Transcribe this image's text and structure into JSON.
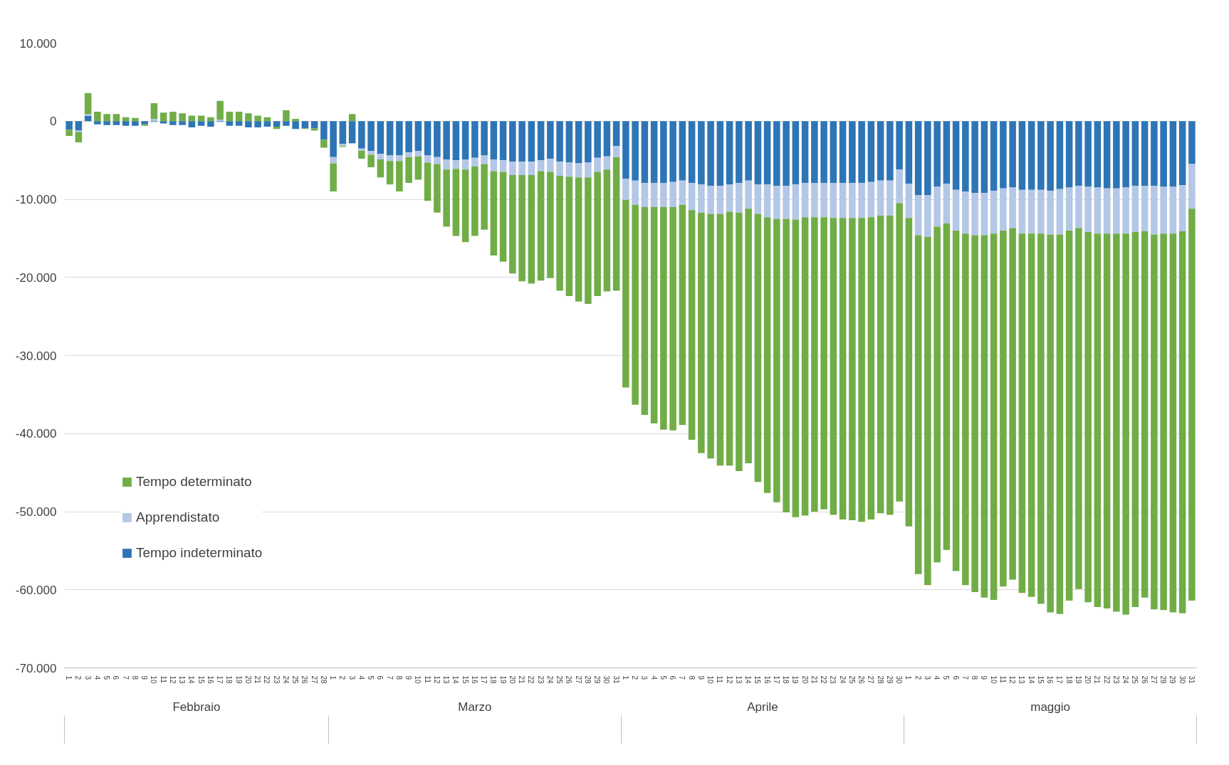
{
  "chart_data": {
    "type": "bar",
    "stacked": true,
    "categories": [
      "1",
      "2",
      "3",
      "4",
      "5",
      "6",
      "7",
      "8",
      "9",
      "10",
      "11",
      "12",
      "13",
      "14",
      "15",
      "16",
      "17",
      "18",
      "19",
      "20",
      "21",
      "22",
      "23",
      "24",
      "25",
      "26",
      "27",
      "28",
      "1",
      "2",
      "3",
      "4",
      "5",
      "6",
      "7",
      "8",
      "9",
      "10",
      "11",
      "12",
      "13",
      "14",
      "15",
      "16",
      "17",
      "18",
      "19",
      "20",
      "21",
      "22",
      "23",
      "24",
      "25",
      "26",
      "27",
      "28",
      "29",
      "30",
      "31",
      "1",
      "2",
      "3",
      "4",
      "5",
      "6",
      "7",
      "8",
      "9",
      "10",
      "11",
      "12",
      "13",
      "14",
      "15",
      "16",
      "17",
      "18",
      "19",
      "20",
      "21",
      "22",
      "23",
      "24",
      "25",
      "26",
      "27",
      "28",
      "29",
      "30",
      "1",
      "2",
      "3",
      "4",
      "5",
      "6",
      "7",
      "8",
      "9",
      "10",
      "11",
      "12",
      "13",
      "14",
      "15",
      "16",
      "17",
      "18",
      "19",
      "20",
      "21",
      "22",
      "23",
      "24",
      "25",
      "26",
      "27",
      "28",
      "29",
      "30",
      "31"
    ],
    "annotations": [
      "Febbraio",
      "Marzo",
      "Aprile",
      "maggio"
    ],
    "series": [
      {
        "name": "Tempo indeterminato",
        "color": "#2e75b6",
        "values": [
          -1100,
          -1200,
          700,
          -400,
          -500,
          -500,
          -600,
          -600,
          -400,
          -100,
          -300,
          -500,
          -500,
          -800,
          -600,
          -700,
          -100,
          -600,
          -600,
          -800,
          -800,
          -700,
          -700,
          -600,
          -1000,
          -900,
          -900,
          -2400,
          -4600,
          -2900,
          -2800,
          -3500,
          -3800,
          -4200,
          -4400,
          -4400,
          -4000,
          -3800,
          -4400,
          -4600,
          -4900,
          -5000,
          -4900,
          -4700,
          -4400,
          -4900,
          -5000,
          -5200,
          -5200,
          -5200,
          -5000,
          -4800,
          -5200,
          -5300,
          -5400,
          -5300,
          -4700,
          -4500,
          -3200,
          -7400,
          -7600,
          -7900,
          -7900,
          -7900,
          -7800,
          -7600,
          -7900,
          -8100,
          -8300,
          -8300,
          -8100,
          -7900,
          -7600,
          -8100,
          -8100,
          -8300,
          -8300,
          -8100,
          -7900,
          -7900,
          -7900,
          -7900,
          -7900,
          -7900,
          -7900,
          -7800,
          -7600,
          -7600,
          -6200,
          -8000,
          -9500,
          -9500,
          -8400,
          -8000,
          -8800,
          -9000,
          -9200,
          -9200,
          -8900,
          -8600,
          -8500,
          -8800,
          -8800,
          -8800,
          -8900,
          -8700,
          -8500,
          -8300,
          -8400,
          -8500,
          -8600,
          -8600,
          -8500,
          -8300,
          -8300,
          -8300,
          -8400,
          -8400,
          -8200,
          -5500
        ]
      },
      {
        "name": "Apprendistato",
        "color": "#b4c7e7",
        "values": [
          null,
          -200,
          200,
          0,
          0,
          0,
          0,
          0,
          0,
          300,
          0,
          0,
          0,
          0,
          0,
          0,
          200,
          0,
          0,
          0,
          null,
          null,
          0,
          0,
          0,
          0,
          0,
          null,
          -800,
          -300,
          -100,
          -300,
          -500,
          -700,
          -700,
          -700,
          -600,
          -700,
          -900,
          -900,
          -1300,
          -1100,
          -1300,
          -1100,
          -1100,
          -1500,
          -1500,
          -1700,
          -1700,
          -1700,
          -1400,
          -1700,
          -1800,
          -1800,
          -1800,
          -1900,
          -1800,
          -1700,
          -1400,
          -2700,
          -3100,
          -3100,
          -3100,
          -3100,
          -3200,
          -3100,
          -3500,
          -3600,
          -3600,
          -3600,
          -3500,
          -3800,
          -3600,
          -3800,
          -4200,
          -4200,
          -4200,
          -4500,
          -4400,
          -4400,
          -4400,
          -4500,
          -4500,
          -4500,
          -4500,
          -4500,
          -4500,
          -4500,
          -4300,
          -4400,
          -5100,
          -5300,
          -5100,
          -5100,
          -5200,
          -5400,
          -5400,
          -5400,
          -5500,
          -5400,
          -5200,
          -5600,
          -5600,
          -5600,
          -5600,
          -5800,
          -5500,
          -5400,
          -5800,
          -5900,
          -5800,
          -5800,
          -5900,
          -5900,
          -5800,
          -6200,
          -6000,
          -6000,
          -5900,
          -5700
        ]
      },
      {
        "name": "Tempo determinato",
        "color": "#70ad47",
        "values": [
          -800,
          -1300,
          2700,
          1200,
          900,
          900,
          500,
          400,
          -200,
          2000,
          1100,
          1200,
          1000,
          700,
          700,
          500,
          2400,
          1200,
          1200,
          1000,
          700,
          500,
          -300,
          1400,
          300,
          -100,
          -300,
          -1000,
          -3600,
          -100,
          900,
          -1000,
          -1600,
          -2300,
          -3000,
          -3900,
          -3300,
          -3000,
          -4900,
          -6200,
          -7300,
          -8600,
          -9300,
          -8900,
          -8400,
          -10800,
          -11500,
          -12600,
          -13600,
          -13900,
          -14000,
          -13600,
          -14700,
          -15300,
          -15900,
          -16200,
          -15900,
          -15600,
          -17100,
          -24000,
          -25600,
          -26600,
          -27700,
          -28500,
          -28600,
          -28200,
          -29400,
          -30800,
          -31300,
          -32200,
          -32500,
          -33100,
          -32600,
          -34300,
          -35300,
          -36300,
          -37600,
          -38100,
          -38200,
          -37700,
          -37400,
          -38000,
          -38600,
          -38700,
          -38900,
          -38700,
          -38100,
          -38300,
          -38200,
          -39500,
          -43400,
          -44600,
          -43000,
          -41800,
          -43600,
          -45000,
          -45700,
          -46400,
          -46900,
          -45600,
          -45000,
          -46000,
          -46500,
          -47400,
          -48400,
          -48600,
          -47400,
          -46200,
          -47400,
          -47800,
          -48000,
          -48400,
          -48800,
          -48000,
          -46900,
          -48000,
          -48200,
          -48500,
          -48900,
          -50200
        ]
      }
    ],
    "ylim": [
      -70000,
      10000
    ],
    "yticks": [
      {
        "value": 10000,
        "label": "10.000"
      },
      0,
      {
        "value": -10000,
        "label": "-10.000"
      },
      {
        "value": -20000,
        "label": "-20.000"
      },
      {
        "value": -30000,
        "label": "-30.000"
      },
      {
        "value": -40000,
        "label": "-40.000"
      },
      {
        "value": -50000,
        "label": "-50.000"
      },
      {
        "value": -60000,
        "label": "-60.000"
      },
      {
        "value": -70000,
        "label": "-70.000"
      }
    ],
    "grid": "y",
    "legend": "left"
  }
}
